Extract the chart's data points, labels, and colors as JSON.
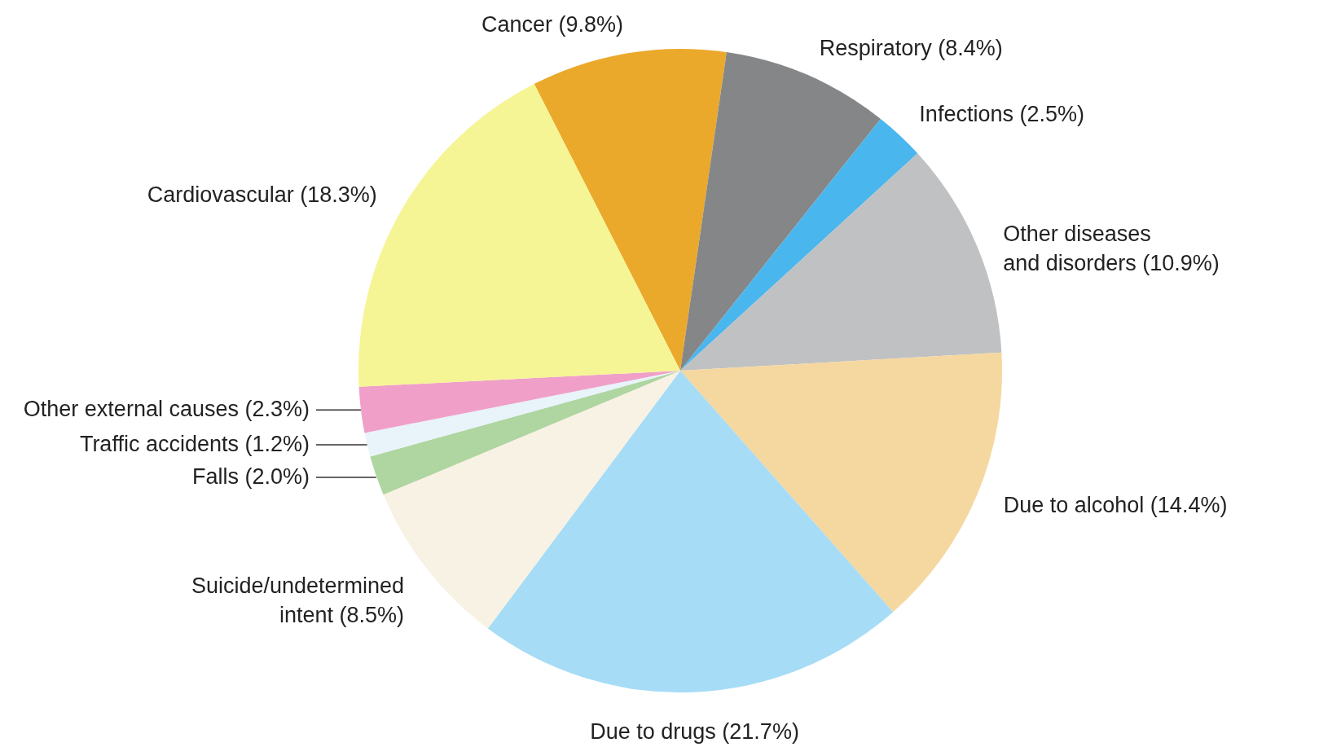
{
  "chart_data": {
    "type": "pie",
    "categories": [
      "Cancer",
      "Respiratory",
      "Infections",
      "Other diseases and disorders",
      "Due to alcohol",
      "Due to drugs",
      "Suicide/undetermined intent",
      "Falls",
      "Traffic accidents",
      "Other external causes",
      "Cardiovascular"
    ],
    "values": [
      9.8,
      8.4,
      2.5,
      10.9,
      14.4,
      21.7,
      8.5,
      2.0,
      1.2,
      2.3,
      18.3
    ],
    "value_labels": [
      "(9.8%)",
      "(8.4%)",
      "(2.5%)",
      "(10.9%)",
      "(14.4%)",
      "(21.7%)",
      "(8.5%)",
      "(2.0%)",
      "(1.2%)",
      "(2.3%)",
      "(18.3%)"
    ],
    "colors": [
      "#eba92c",
      "#858687",
      "#4ab6ee",
      "#c0c1c2",
      "#f5d7a0",
      "#a6dcf5",
      "#f8f2e4",
      "#afd5a0",
      "#e8f3fa",
      "#f0a0c8",
      "#f5f595"
    ],
    "legend": false
  }
}
